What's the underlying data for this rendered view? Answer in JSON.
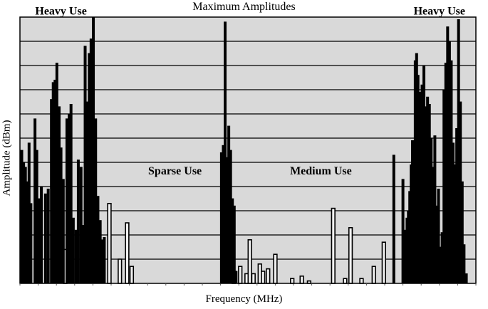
{
  "chart_data": {
    "type": "bar",
    "title": "Maximum Amplitudes",
    "xlabel": "Frequency (MHz)",
    "ylabel": "Amplitude (dBm)",
    "grid": true,
    "legend": "none",
    "ylim": [
      0,
      11
    ],
    "xlim": [
      0,
      100
    ],
    "annotations": [
      {
        "text": "Heavy Use",
        "x": 9,
        "y": 11.1
      },
      {
        "text": "Sparse Use",
        "x": 34,
        "y": 4.5
      },
      {
        "text": "Medium Use",
        "x": 66,
        "y": 4.5
      },
      {
        "text": "Heavy Use",
        "x": 92,
        "y": 11.1
      }
    ],
    "series": [
      {
        "style": "filled",
        "x": [
          0.4,
          0.8,
          1.2,
          1.6,
          2.0,
          2.4,
          3.3,
          3.7,
          4.2,
          4.7,
          5.6,
          6.2,
          6.9,
          7.3,
          7.7,
          8.1,
          8.6,
          9.0,
          9.5,
          10.3,
          10.8,
          11.2,
          11.7,
          12.3,
          12.8,
          13.4,
          13.8,
          14.3,
          14.7,
          15.2,
          15.6,
          16.1,
          16.6,
          17.1,
          17.6,
          18.0,
          18.5,
          44.2,
          44.6,
          45.0,
          45.4,
          45.8,
          46.2,
          46.6,
          47.0,
          47.4,
          82.0,
          84.0,
          84.3,
          84.6,
          84.9,
          85.2,
          85.5,
          85.8,
          86.1,
          86.4,
          86.7,
          87.0,
          87.3,
          87.6,
          87.9,
          88.2,
          88.6,
          89.0,
          89.4,
          89.8,
          90.2,
          90.6,
          91.0,
          91.4,
          91.8,
          92.2,
          92.6,
          93.0,
          93.4,
          93.8,
          94.2,
          94.6,
          95.0,
          95.4,
          95.8,
          96.2,
          96.6,
          97.0,
          97.4,
          97.9
        ],
        "values": [
          5.5,
          5.0,
          4.8,
          4.2,
          5.8,
          3.3,
          6.8,
          5.5,
          3.5,
          4.0,
          3.7,
          3.9,
          7.6,
          8.3,
          8.4,
          9.1,
          7.3,
          5.6,
          4.3,
          6.8,
          7.0,
          7.4,
          2.7,
          2.2,
          5.1,
          4.8,
          2.4,
          9.8,
          7.5,
          9.5,
          10.1,
          11.0,
          6.8,
          3.6,
          2.6,
          1.8,
          1.9,
          5.4,
          5.7,
          10.8,
          5.2,
          6.5,
          5.5,
          3.5,
          3.2,
          0.5,
          5.3,
          4.3,
          1.9,
          2.2,
          2.7,
          3.0,
          3.8,
          4.9,
          5.9,
          3.2,
          9.2,
          9.5,
          8.6,
          7.9,
          5.6,
          8.2,
          9.0,
          7.3,
          7.7,
          7.4,
          6.0,
          4.8,
          6.1,
          3.2,
          3.9,
          1.5,
          2.1,
          8.0,
          9.1,
          10.6,
          10.0,
          9.2,
          5.8,
          4.9,
          6.4,
          10.9,
          7.5,
          4.2,
          1.6,
          0.4
        ]
      },
      {
        "style": "outline",
        "x": [
          9.8,
          19.5,
          21.8,
          23.4,
          24.4,
          46.8,
          48.2,
          49.6,
          50.3,
          51.1,
          52.5,
          53.2,
          54.3,
          55.9,
          59.6,
          61.7,
          63.3,
          68.6,
          71.2,
          72.4,
          74.8,
          77.5,
          79.7
        ],
        "values": [
          1.4,
          3.3,
          1.0,
          2.5,
          0.7,
          0.5,
          0.7,
          0.4,
          1.8,
          0.4,
          0.8,
          0.5,
          0.6,
          1.2,
          0.2,
          0.3,
          0.1,
          3.1,
          0.2,
          2.3,
          0.2,
          0.7,
          1.7
        ]
      }
    ]
  }
}
